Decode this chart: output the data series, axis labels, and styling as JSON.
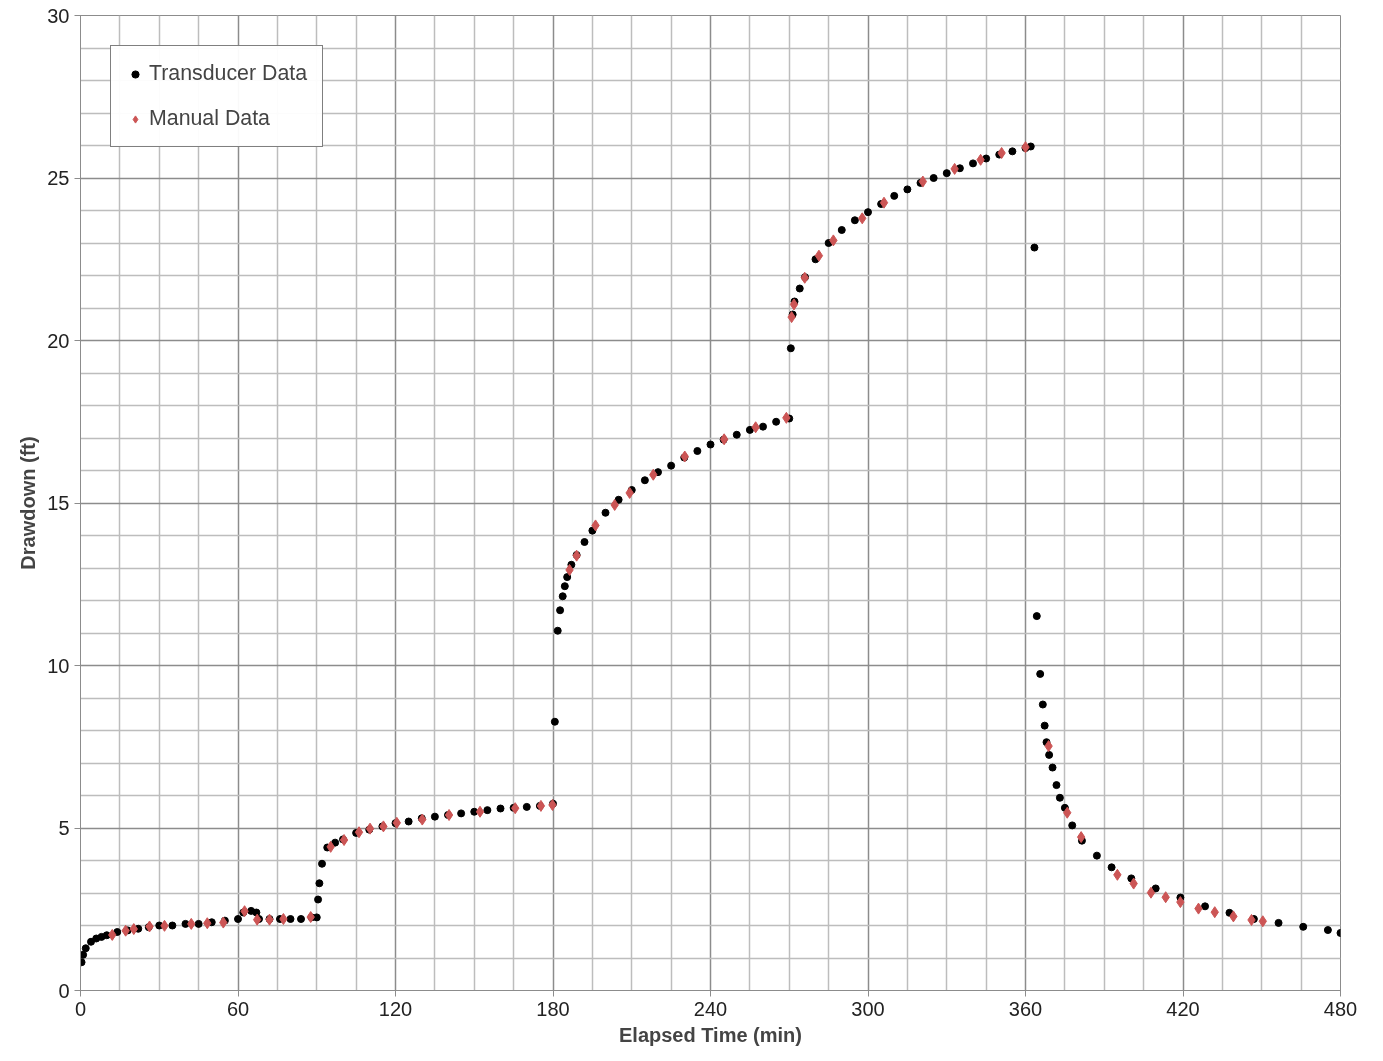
{
  "chart_data": {
    "type": "scatter",
    "xlabel": "Elapsed Time (min)",
    "ylabel": "Drawdown (ft)",
    "xlim": [
      0,
      480
    ],
    "xticks": [
      0,
      60,
      120,
      180,
      240,
      300,
      360,
      420,
      480
    ],
    "ylim": [
      0,
      30
    ],
    "yticks": [
      0,
      5,
      10,
      15,
      20,
      25,
      30
    ],
    "grid": true,
    "legend": "top left",
    "series": [
      {
        "name": "Transducer Data",
        "color": "#000000",
        "marker": "circle",
        "x": [
          0.4,
          1,
          2,
          4,
          6,
          8,
          10,
          14,
          18,
          22,
          26,
          30,
          35,
          40,
          45,
          50,
          55,
          60,
          62,
          65,
          67,
          68,
          72,
          76,
          80,
          84,
          88,
          90,
          90.5,
          91,
          92,
          94,
          97,
          100,
          105,
          110,
          115,
          120,
          125,
          130,
          135,
          140,
          145,
          150,
          155,
          160,
          165,
          170,
          175,
          180,
          180.7,
          181.8,
          182.7,
          183.7,
          184.5,
          185.4,
          187,
          189,
          192,
          195,
          200,
          205,
          210,
          215,
          220,
          225,
          230,
          235,
          240,
          245,
          250,
          255,
          260,
          265,
          270,
          270.6,
          271.3,
          272,
          274,
          276,
          280,
          285,
          290,
          295,
          300,
          305,
          310,
          315,
          320,
          325,
          330,
          335,
          340,
          345,
          350,
          355,
          360,
          362,
          363.4,
          364.3,
          365.6,
          366.6,
          367.3,
          368,
          369,
          370.3,
          371.8,
          373.1,
          375,
          377.8,
          381.5,
          387.2,
          392.8,
          400.3,
          409.6,
          419,
          428.4,
          437.7,
          447,
          456.4,
          465.8,
          475.2,
          480
        ],
        "values": [
          0.87,
          1.1,
          1.3,
          1.5,
          1.6,
          1.65,
          1.7,
          1.8,
          1.85,
          1.9,
          1.95,
          2.0,
          2.0,
          2.05,
          2.05,
          2.1,
          2.15,
          2.2,
          2.4,
          2.45,
          2.4,
          2.2,
          2.2,
          2.2,
          2.2,
          2.2,
          2.25,
          2.25,
          2.8,
          3.3,
          3.9,
          4.4,
          4.55,
          4.65,
          4.85,
          4.95,
          5.05,
          5.15,
          5.2,
          5.3,
          5.35,
          5.4,
          5.45,
          5.5,
          5.55,
          5.6,
          5.62,
          5.65,
          5.68,
          5.75,
          8.27,
          11.07,
          11.7,
          12.13,
          12.44,
          12.72,
          13.1,
          13.4,
          13.8,
          14.15,
          14.7,
          15.1,
          15.4,
          15.7,
          15.95,
          16.15,
          16.4,
          16.6,
          16.8,
          16.95,
          17.1,
          17.25,
          17.35,
          17.5,
          17.6,
          19.76,
          20.8,
          21.2,
          21.6,
          21.95,
          22.5,
          23.0,
          23.4,
          23.7,
          23.95,
          24.2,
          24.45,
          24.65,
          24.85,
          25.0,
          25.15,
          25.3,
          25.45,
          25.6,
          25.72,
          25.82,
          25.92,
          25.97,
          22.86,
          11.52,
          9.74,
          8.8,
          8.15,
          7.64,
          7.25,
          6.86,
          6.32,
          5.93,
          5.62,
          5.08,
          4.61,
          4.15,
          3.79,
          3.45,
          3.14,
          2.86,
          2.59,
          2.39,
          2.2,
          2.08,
          1.96,
          1.86,
          1.77
        ]
      },
      {
        "name": "Manual Data",
        "color": "#cc5555",
        "marker": "diamond",
        "x": [
          12.1,
          17.2,
          20.3,
          26.3,
          32.0,
          42.2,
          48.3,
          54.4,
          62.5,
          67.3,
          72.0,
          77.3,
          87.7,
          95.3,
          100.4,
          106.1,
          110.3,
          115.4,
          120.5,
          130.2,
          140.4,
          152.2,
          165.6,
          175.4,
          179.8,
          186.3,
          189,
          196.2,
          203.5,
          209.2,
          218.2,
          230.2,
          245.2,
          257.2,
          268.9,
          270.9,
          271.8,
          275.9,
          281.3,
          286.8,
          297.8,
          306.1,
          320.9,
          333,
          342.9,
          350.9,
          360,
          368.8,
          375.9,
          381.2,
          395,
          401.2,
          407.8,
          413.4,
          419,
          425.9,
          432.1,
          439.2,
          446.1,
          450.4
        ],
        "values": [
          1.71,
          1.84,
          1.89,
          1.97,
          1.99,
          2.05,
          2.07,
          2.09,
          2.44,
          2.18,
          2.18,
          2.2,
          2.26,
          4.42,
          4.63,
          4.87,
          4.98,
          5.05,
          5.16,
          5.26,
          5.4,
          5.5,
          5.61,
          5.68,
          5.71,
          12.94,
          13.38,
          14.31,
          14.94,
          15.31,
          15.87,
          16.43,
          16.96,
          17.33,
          17.62,
          20.72,
          21.11,
          21.93,
          22.61,
          23.08,
          23.76,
          24.24,
          24.89,
          25.28,
          25.56,
          25.77,
          25.95,
          7.52,
          5.47,
          4.72,
          3.56,
          3.29,
          3.01,
          2.87,
          2.72,
          2.52,
          2.41,
          2.28,
          2.17,
          2.13
        ]
      }
    ]
  }
}
